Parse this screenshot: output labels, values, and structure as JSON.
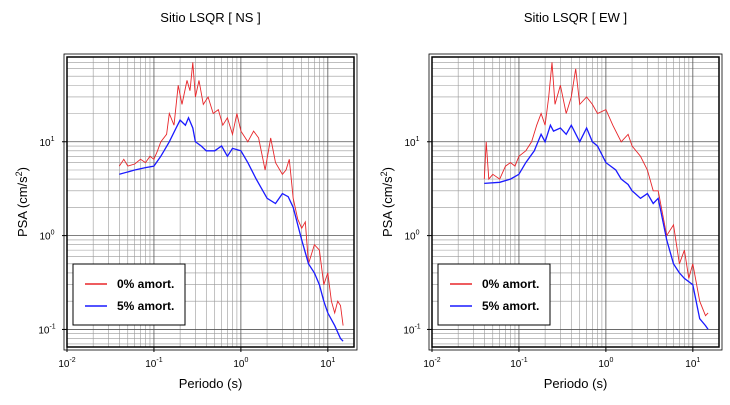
{
  "chart_data": [
    {
      "type": "line",
      "title": "Sitio LSQR [ NS ]",
      "xlabel": "Periodo (s)",
      "ylabel_parts": [
        "PSA (cm/s",
        "2",
        ")"
      ],
      "log_x": true,
      "log_y": true,
      "grid": true,
      "legend": "lower left",
      "xlim": [
        0.01,
        20
      ],
      "ylim": [
        0.065,
        80
      ],
      "xticks": [
        {
          "value": 0.01,
          "label": "10",
          "exponent": "-2"
        },
        {
          "value": 0.1,
          "label": "10",
          "exponent": "-1"
        },
        {
          "value": 1,
          "label": "10",
          "exponent": "0"
        },
        {
          "value": 10,
          "label": "10",
          "exponent": "1"
        }
      ],
      "yticks": [
        {
          "value": 0.1,
          "label": "10",
          "exponent": "-1"
        },
        {
          "value": 1,
          "label": "10",
          "exponent": "0"
        },
        {
          "value": 10,
          "label": "10",
          "exponent": "1"
        }
      ],
      "series": [
        {
          "name": "0% amort.",
          "color": "#e8262a",
          "x": [
            0.04,
            0.045,
            0.05,
            0.06,
            0.07,
            0.08,
            0.09,
            0.1,
            0.11,
            0.12,
            0.14,
            0.15,
            0.17,
            0.19,
            0.21,
            0.24,
            0.26,
            0.28,
            0.3,
            0.33,
            0.37,
            0.42,
            0.48,
            0.55,
            0.62,
            0.7,
            0.8,
            0.9,
            1.0,
            1.2,
            1.4,
            1.6,
            1.9,
            2.2,
            2.5,
            3.0,
            3.3,
            3.6,
            4.0,
            4.5,
            5,
            5.5,
            6,
            7,
            8,
            9,
            10,
            11,
            12,
            13,
            14,
            15
          ],
          "values": [
            5.5,
            6.5,
            5.5,
            5.8,
            6.5,
            6,
            7,
            6.5,
            8,
            10,
            12,
            20,
            15,
            40,
            25,
            45,
            35,
            70,
            30,
            45,
            25,
            30,
            20,
            22,
            15,
            18,
            12,
            20,
            13,
            10,
            13,
            11,
            5,
            11,
            6,
            4.5,
            5,
            6.5,
            2.5,
            1.5,
            1.2,
            1.4,
            0.5,
            0.8,
            0.7,
            0.3,
            0.4,
            0.2,
            0.15,
            0.2,
            0.18,
            0.11
          ]
        },
        {
          "name": "5% amort.",
          "color": "#1a1aff",
          "x": [
            0.04,
            0.06,
            0.08,
            0.1,
            0.12,
            0.15,
            0.18,
            0.2,
            0.23,
            0.25,
            0.28,
            0.3,
            0.35,
            0.4,
            0.5,
            0.6,
            0.7,
            0.8,
            1.0,
            1.2,
            1.5,
            2.0,
            2.5,
            3.0,
            3.5,
            4,
            5,
            6,
            7,
            8,
            9,
            10,
            12,
            14,
            15
          ],
          "values": [
            4.5,
            5,
            5.3,
            5.5,
            7,
            10,
            14,
            17,
            15,
            18,
            14,
            10,
            9,
            8,
            8,
            9,
            7,
            8.5,
            8,
            6,
            4,
            2.5,
            2.2,
            2.8,
            2.6,
            2,
            0.9,
            0.5,
            0.4,
            0.3,
            0.2,
            0.15,
            0.11,
            0.08,
            0.075
          ]
        }
      ]
    },
    {
      "type": "line",
      "title": "Sitio LSQR [ EW ]",
      "xlabel": "Periodo (s)",
      "ylabel_parts": [
        "PSA (cm/s",
        "2",
        ")"
      ],
      "log_x": true,
      "log_y": true,
      "grid": true,
      "legend": "lower left",
      "xlim": [
        0.01,
        20
      ],
      "ylim": [
        0.065,
        80
      ],
      "xticks": [
        {
          "value": 0.01,
          "label": "10",
          "exponent": "-2"
        },
        {
          "value": 0.1,
          "label": "10",
          "exponent": "-1"
        },
        {
          "value": 1,
          "label": "10",
          "exponent": "0"
        },
        {
          "value": 10,
          "label": "10",
          "exponent": "1"
        }
      ],
      "yticks": [
        {
          "value": 0.1,
          "label": "10",
          "exponent": "-1"
        },
        {
          "value": 1,
          "label": "10",
          "exponent": "0"
        },
        {
          "value": 10,
          "label": "10",
          "exponent": "1"
        }
      ],
      "series": [
        {
          "name": "0% amort.",
          "color": "#e8262a",
          "x": [
            0.04,
            0.042,
            0.045,
            0.05,
            0.06,
            0.07,
            0.08,
            0.09,
            0.1,
            0.12,
            0.14,
            0.16,
            0.18,
            0.2,
            0.22,
            0.24,
            0.26,
            0.3,
            0.35,
            0.4,
            0.45,
            0.5,
            0.6,
            0.7,
            0.8,
            1.0,
            1.2,
            1.5,
            1.8,
            2.0,
            2.5,
            3.0,
            3.5,
            4.0,
            5,
            6,
            7,
            8,
            9,
            10,
            12,
            14,
            15
          ],
          "values": [
            4,
            10,
            4,
            4.5,
            4,
            5.5,
            6,
            5.5,
            7,
            8,
            10,
            15,
            20,
            15,
            30,
            70,
            25,
            40,
            20,
            30,
            60,
            25,
            30,
            25,
            20,
            22,
            15,
            10,
            12,
            9,
            7,
            5,
            3,
            3,
            1,
            1.3,
            0.5,
            0.7,
            0.35,
            0.5,
            0.2,
            0.14,
            0.15
          ]
        },
        {
          "name": "5% amort.",
          "color": "#1a1aff",
          "x": [
            0.04,
            0.06,
            0.08,
            0.1,
            0.12,
            0.15,
            0.18,
            0.2,
            0.23,
            0.25,
            0.3,
            0.35,
            0.4,
            0.5,
            0.6,
            0.7,
            0.8,
            1.0,
            1.3,
            1.5,
            1.8,
            2.0,
            2.5,
            3.0,
            3.5,
            4,
            5,
            6,
            7,
            8,
            10,
            12,
            14,
            15
          ],
          "values": [
            3.6,
            3.7,
            4,
            4.5,
            6,
            8,
            12,
            10,
            15,
            13,
            14,
            12,
            15,
            10,
            14,
            10,
            9,
            6,
            5,
            4,
            3.5,
            3,
            2.5,
            2.8,
            2.2,
            2.5,
            0.9,
            0.5,
            0.4,
            0.35,
            0.3,
            0.13,
            0.11,
            0.1
          ]
        }
      ]
    }
  ]
}
